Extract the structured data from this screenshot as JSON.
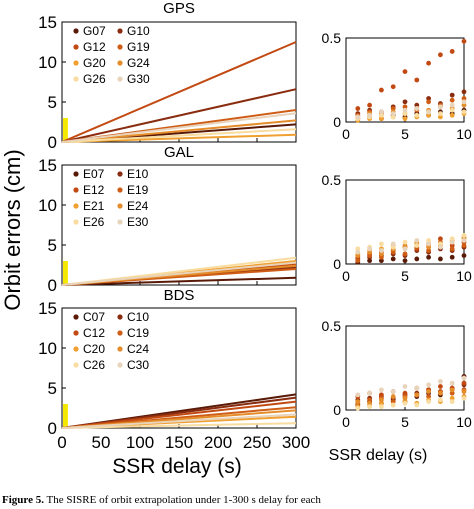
{
  "figure": {
    "ylabel": "Orbit errors (cm)",
    "xlabel_left": "SSR delay (s)",
    "xlabel_right": "SSR delay (s)"
  },
  "caption": {
    "label": "Figure 5.",
    "text": "The SISRE of orbit extrapolation under 1-300 s delay for each"
  },
  "colors": {
    "bar": "#f5e800",
    "axis": "#000000"
  },
  "chart_data": [
    {
      "type": "line",
      "title": "GPS",
      "panel": "GPS-left",
      "xlim": [
        0,
        300
      ],
      "ylim": [
        0,
        15
      ],
      "xticks": [
        0,
        50,
        100,
        150,
        200,
        250,
        300
      ],
      "yticks": [
        0,
        5,
        10,
        15
      ],
      "legend": [
        "G07",
        "G10",
        "G12",
        "G19",
        "G20",
        "G24",
        "G26",
        "G30"
      ],
      "legend_position": "top-left",
      "series": [
        {
          "name": "G07",
          "color": "#5a1a08",
          "x": [
            0,
            300
          ],
          "y": [
            0,
            2.2
          ]
        },
        {
          "name": "G10",
          "color": "#8a2c10",
          "x": [
            0,
            300
          ],
          "y": [
            0,
            6.6
          ]
        },
        {
          "name": "G12",
          "color": "#c24a12",
          "x": [
            0,
            300
          ],
          "y": [
            0,
            12.5
          ]
        },
        {
          "name": "G19",
          "color": "#cf5d16",
          "x": [
            0,
            300
          ],
          "y": [
            0,
            4.0
          ]
        },
        {
          "name": "G20",
          "color": "#f0a030",
          "x": [
            0,
            300
          ],
          "y": [
            0,
            0.9
          ]
        },
        {
          "name": "G24",
          "color": "#e58d2a",
          "x": [
            0,
            300
          ],
          "y": [
            0,
            2.7
          ]
        },
        {
          "name": "G26",
          "color": "#f8dca0",
          "x": [
            0,
            300
          ],
          "y": [
            0,
            1.6
          ]
        },
        {
          "name": "G30",
          "color": "#e8d3bb",
          "x": [
            0,
            300
          ],
          "y": [
            0,
            3.6
          ]
        }
      ],
      "bar": {
        "x": [
          0,
          5
        ],
        "y": [
          0,
          3.0
        ]
      }
    },
    {
      "type": "line",
      "title": "GAL",
      "panel": "GAL-left",
      "xlim": [
        0,
        300
      ],
      "ylim": [
        0,
        15
      ],
      "xticks": [
        0,
        50,
        100,
        150,
        200,
        250,
        300
      ],
      "yticks": [
        0,
        5,
        10,
        15
      ],
      "legend": [
        "E07",
        "E10",
        "E12",
        "E19",
        "E21",
        "E24",
        "E26",
        "E30"
      ],
      "legend_position": "top-left",
      "series": [
        {
          "name": "E07",
          "color": "#5a1a08",
          "x": [
            0,
            300
          ],
          "y": [
            0,
            0.9
          ]
        },
        {
          "name": "E10",
          "color": "#8a2c10",
          "x": [
            0,
            300
          ],
          "y": [
            0,
            2.2
          ]
        },
        {
          "name": "E12",
          "color": "#c24a12",
          "x": [
            0,
            300
          ],
          "y": [
            0,
            2.6
          ]
        },
        {
          "name": "E19",
          "color": "#cf5d16",
          "x": [
            0,
            300
          ],
          "y": [
            0,
            2.0
          ]
        },
        {
          "name": "E21",
          "color": "#f0a030",
          "x": [
            0,
            300
          ],
          "y": [
            0,
            3.0
          ]
        },
        {
          "name": "E24",
          "color": "#e58d2a",
          "x": [
            0,
            300
          ],
          "y": [
            0,
            2.4
          ]
        },
        {
          "name": "E26",
          "color": "#f8dca0",
          "x": [
            0,
            300
          ],
          "y": [
            0,
            3.4
          ]
        },
        {
          "name": "E30",
          "color": "#e8d3bb",
          "x": [
            0,
            300
          ],
          "y": [
            0,
            2.8
          ]
        }
      ],
      "bar": {
        "x": [
          0,
          5
        ],
        "y": [
          0,
          3.0
        ]
      }
    },
    {
      "type": "line",
      "title": "BDS",
      "panel": "BDS-left",
      "xlim": [
        0,
        300
      ],
      "ylim": [
        0,
        15
      ],
      "xticks": [
        0,
        50,
        100,
        150,
        200,
        250,
        300
      ],
      "yticks": [
        0,
        5,
        10,
        15
      ],
      "legend": [
        "C07",
        "C10",
        "C12",
        "C19",
        "C20",
        "C24",
        "C26",
        "C30"
      ],
      "legend_position": "top-left",
      "series": [
        {
          "name": "C07",
          "color": "#5a1a08",
          "x": [
            0,
            300
          ],
          "y": [
            0,
            4.2
          ]
        },
        {
          "name": "C10",
          "color": "#8a2c10",
          "x": [
            0,
            300
          ],
          "y": [
            0,
            3.8
          ]
        },
        {
          "name": "C12",
          "color": "#c24a12",
          "x": [
            0,
            300
          ],
          "y": [
            0,
            3.3
          ]
        },
        {
          "name": "C19",
          "color": "#cf5d16",
          "x": [
            0,
            300
          ],
          "y": [
            0,
            2.6
          ]
        },
        {
          "name": "C20",
          "color": "#f0a030",
          "x": [
            0,
            300
          ],
          "y": [
            0,
            1.4
          ]
        },
        {
          "name": "C24",
          "color": "#e58d2a",
          "x": [
            0,
            300
          ],
          "y": [
            0,
            2.2
          ]
        },
        {
          "name": "C26",
          "color": "#f8dca0",
          "x": [
            0,
            300
          ],
          "y": [
            0,
            0.6
          ]
        },
        {
          "name": "C30",
          "color": "#e8d3bb",
          "x": [
            0,
            300
          ],
          "y": [
            0,
            1.7
          ]
        }
      ],
      "bar": {
        "x": [
          0,
          5
        ],
        "y": [
          0,
          3.0
        ]
      }
    },
    {
      "type": "scatter",
      "panel": "GPS-right",
      "xlim": [
        0,
        10
      ],
      "ylim": [
        0,
        0.5
      ],
      "xticks": [
        0,
        5,
        10
      ],
      "yticks": [
        0,
        0.5
      ],
      "series": [
        {
          "name": "G07",
          "color": "#5a1a08",
          "x": [
            1,
            2,
            3,
            4,
            5,
            6,
            7,
            8,
            9,
            10
          ],
          "y": [
            0.02,
            0.03,
            0.02,
            0.04,
            0.03,
            0.05,
            0.04,
            0.06,
            0.05,
            0.07
          ]
        },
        {
          "name": "G10",
          "color": "#8a2c10",
          "x": [
            1,
            2,
            3,
            4,
            5,
            6,
            7,
            8,
            9,
            10
          ],
          "y": [
            0.05,
            0.07,
            0.06,
            0.09,
            0.12,
            0.1,
            0.14,
            0.11,
            0.16,
            0.18
          ]
        },
        {
          "name": "G12",
          "color": "#c24a12",
          "x": [
            1,
            2,
            3,
            4,
            5,
            6,
            7,
            8,
            9,
            10
          ],
          "y": [
            0.08,
            0.1,
            0.19,
            0.21,
            0.3,
            0.25,
            0.35,
            0.4,
            0.42,
            0.48
          ]
        },
        {
          "name": "G19",
          "color": "#cf5d16",
          "x": [
            1,
            2,
            3,
            4,
            5,
            6,
            7,
            8,
            9,
            10
          ],
          "y": [
            0.04,
            0.06,
            0.05,
            0.08,
            0.09,
            0.07,
            0.12,
            0.1,
            0.13,
            0.14
          ]
        },
        {
          "name": "G20",
          "color": "#f0a030",
          "x": [
            1,
            2,
            3,
            4,
            5,
            6,
            7,
            8,
            9,
            10
          ],
          "y": [
            0.01,
            0.02,
            0.02,
            0.03,
            0.02,
            0.03,
            0.04,
            0.03,
            0.04,
            0.05
          ]
        },
        {
          "name": "G24",
          "color": "#e58d2a",
          "x": [
            1,
            2,
            3,
            4,
            5,
            6,
            7,
            8,
            9,
            10
          ],
          "y": [
            0.03,
            0.05,
            0.04,
            0.06,
            0.05,
            0.08,
            0.07,
            0.09,
            0.08,
            0.1
          ]
        },
        {
          "name": "G26",
          "color": "#f8dca0",
          "x": [
            1,
            2,
            3,
            4,
            5,
            6,
            7,
            8,
            9,
            10
          ],
          "y": [
            0.02,
            0.03,
            0.04,
            0.03,
            0.05,
            0.04,
            0.06,
            0.05,
            0.07,
            0.06
          ]
        },
        {
          "name": "G30",
          "color": "#e8d3bb",
          "x": [
            1,
            2,
            3,
            4,
            5,
            6,
            7,
            8,
            9,
            10
          ],
          "y": [
            0.03,
            0.04,
            0.06,
            0.05,
            0.07,
            0.08,
            0.06,
            0.09,
            0.1,
            0.12
          ]
        }
      ]
    },
    {
      "type": "scatter",
      "panel": "GAL-right",
      "xlim": [
        0,
        10
      ],
      "ylim": [
        0,
        0.5
      ],
      "xticks": [
        0,
        5,
        10
      ],
      "yticks": [
        0,
        0.5
      ],
      "series": [
        {
          "name": "E07",
          "color": "#5a1a08",
          "x": [
            1,
            2,
            3,
            4,
            5,
            6,
            7,
            8,
            9,
            10
          ],
          "y": [
            0.01,
            0.02,
            0.02,
            0.03,
            0.02,
            0.03,
            0.04,
            0.03,
            0.04,
            0.05
          ]
        },
        {
          "name": "E10",
          "color": "#8a2c10",
          "x": [
            1,
            2,
            3,
            4,
            5,
            6,
            7,
            8,
            9,
            10
          ],
          "y": [
            0.03,
            0.04,
            0.05,
            0.06,
            0.05,
            0.08,
            0.07,
            0.09,
            0.08,
            0.1
          ]
        },
        {
          "name": "E12",
          "color": "#c24a12",
          "x": [
            1,
            2,
            3,
            4,
            5,
            6,
            7,
            8,
            9,
            10
          ],
          "y": [
            0.04,
            0.06,
            0.07,
            0.08,
            0.1,
            0.09,
            0.12,
            0.15,
            0.11,
            0.13
          ]
        },
        {
          "name": "E19",
          "color": "#cf5d16",
          "x": [
            1,
            2,
            3,
            4,
            5,
            6,
            7,
            8,
            9,
            10
          ],
          "y": [
            0.02,
            0.05,
            0.04,
            0.07,
            0.06,
            0.1,
            0.08,
            0.13,
            0.09,
            0.11
          ]
        },
        {
          "name": "E21",
          "color": "#f0a030",
          "x": [
            1,
            2,
            3,
            4,
            5,
            6,
            7,
            8,
            9,
            10
          ],
          "y": [
            0.06,
            0.08,
            0.09,
            0.11,
            0.1,
            0.13,
            0.11,
            0.12,
            0.14,
            0.15
          ]
        },
        {
          "name": "E24",
          "color": "#e58d2a",
          "x": [
            1,
            2,
            3,
            4,
            5,
            6,
            7,
            8,
            9,
            10
          ],
          "y": [
            0.05,
            0.07,
            0.06,
            0.09,
            0.11,
            0.12,
            0.1,
            0.11,
            0.13,
            0.16
          ]
        },
        {
          "name": "E26",
          "color": "#f8dca0",
          "x": [
            1,
            2,
            3,
            4,
            5,
            6,
            7,
            8,
            9,
            10
          ],
          "y": [
            0.09,
            0.1,
            0.12,
            0.1,
            0.13,
            0.11,
            0.14,
            0.12,
            0.15,
            0.17
          ]
        },
        {
          "name": "E30",
          "color": "#e8d3bb",
          "x": [
            1,
            2,
            3,
            4,
            5,
            6,
            7,
            8,
            9,
            10
          ],
          "y": [
            0.07,
            0.09,
            0.08,
            0.12,
            0.09,
            0.14,
            0.12,
            0.1,
            0.13,
            0.14
          ]
        }
      ]
    },
    {
      "type": "scatter",
      "panel": "BDS-right",
      "xlim": [
        0,
        10
      ],
      "ylim": [
        0,
        0.5
      ],
      "xticks": [
        0,
        5,
        10
      ],
      "yticks": [
        0,
        0.5
      ],
      "series": [
        {
          "name": "C07",
          "color": "#5a1a08",
          "x": [
            1,
            2,
            3,
            4,
            5,
            6,
            7,
            8,
            9,
            10
          ],
          "y": [
            0.03,
            0.05,
            0.04,
            0.06,
            0.05,
            0.08,
            0.1,
            0.09,
            0.12,
            0.2
          ]
        },
        {
          "name": "C10",
          "color": "#8a2c10",
          "x": [
            1,
            2,
            3,
            4,
            5,
            6,
            7,
            8,
            9,
            10
          ],
          "y": [
            0.06,
            0.07,
            0.08,
            0.07,
            0.09,
            0.1,
            0.12,
            0.11,
            0.13,
            0.15
          ]
        },
        {
          "name": "C12",
          "color": "#c24a12",
          "x": [
            1,
            2,
            3,
            4,
            5,
            6,
            7,
            8,
            9,
            10
          ],
          "y": [
            0.08,
            0.1,
            0.09,
            0.11,
            0.1,
            0.13,
            0.12,
            0.14,
            0.13,
            0.16
          ]
        },
        {
          "name": "C19",
          "color": "#cf5d16",
          "x": [
            1,
            2,
            3,
            4,
            5,
            6,
            7,
            8,
            9,
            10
          ],
          "y": [
            0.04,
            0.06,
            0.07,
            0.05,
            0.08,
            0.09,
            0.08,
            0.11,
            0.1,
            0.12
          ]
        },
        {
          "name": "C20",
          "color": "#f0a030",
          "x": [
            1,
            2,
            3,
            4,
            5,
            6,
            7,
            8,
            9,
            10
          ],
          "y": [
            0.02,
            0.03,
            0.04,
            0.03,
            0.05,
            0.04,
            0.06,
            0.05,
            0.07,
            0.08
          ]
        },
        {
          "name": "C24",
          "color": "#e58d2a",
          "x": [
            1,
            2,
            3,
            4,
            5,
            6,
            7,
            8,
            9,
            10
          ],
          "y": [
            0.05,
            0.04,
            0.06,
            0.08,
            0.07,
            0.09,
            0.11,
            0.1,
            0.12,
            0.11
          ]
        },
        {
          "name": "C26",
          "color": "#f8dca0",
          "x": [
            1,
            2,
            3,
            4,
            5,
            6,
            7,
            8,
            9,
            10
          ],
          "y": [
            0.01,
            0.02,
            0.02,
            0.03,
            0.04,
            0.03,
            0.05,
            0.06,
            0.05,
            0.07
          ]
        },
        {
          "name": "C30",
          "color": "#e8d3bb",
          "x": [
            1,
            2,
            3,
            4,
            5,
            6,
            7,
            8,
            9,
            10
          ],
          "y": [
            0.09,
            0.1,
            0.12,
            0.11,
            0.14,
            0.13,
            0.15,
            0.17,
            0.16,
            0.19
          ]
        }
      ]
    }
  ]
}
